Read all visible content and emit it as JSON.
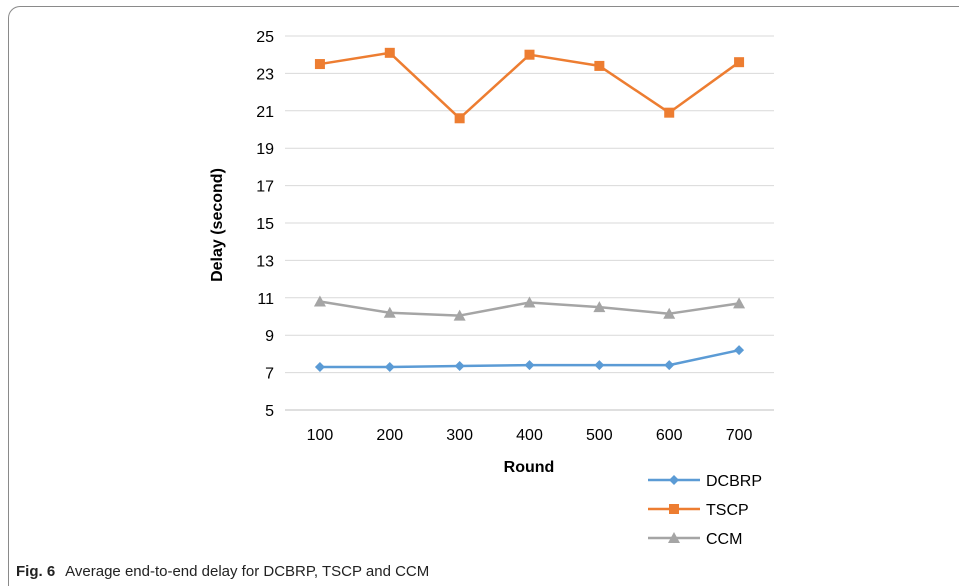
{
  "caption": {
    "label": "Fig. 6",
    "text": "Average end-to-end delay for DCBRP, TSCP and CCM"
  },
  "chart_data": {
    "type": "line",
    "xlabel": "Round",
    "ylabel": "Delay (second)",
    "ylim": [
      5,
      25
    ],
    "yticks": [
      5,
      7,
      9,
      11,
      13,
      15,
      17,
      19,
      21,
      23,
      25
    ],
    "categories": [
      "100",
      "200",
      "300",
      "400",
      "500",
      "600",
      "700"
    ],
    "grid": "horizontal",
    "legend_position": "bottom-right",
    "series": [
      {
        "name": "DCBRP",
        "color": "#5b9bd5",
        "marker": "diamond",
        "values": [
          7.3,
          7.3,
          7.35,
          7.4,
          7.4,
          7.4,
          8.2
        ]
      },
      {
        "name": "TSCP",
        "color": "#ed7d31",
        "marker": "square",
        "values": [
          23.5,
          24.1,
          20.6,
          24.0,
          23.4,
          20.9,
          23.6
        ]
      },
      {
        "name": "CCM",
        "color": "#a5a5a5",
        "marker": "triangle",
        "values": [
          10.8,
          10.2,
          10.05,
          10.75,
          10.5,
          10.15,
          10.7
        ]
      }
    ]
  }
}
